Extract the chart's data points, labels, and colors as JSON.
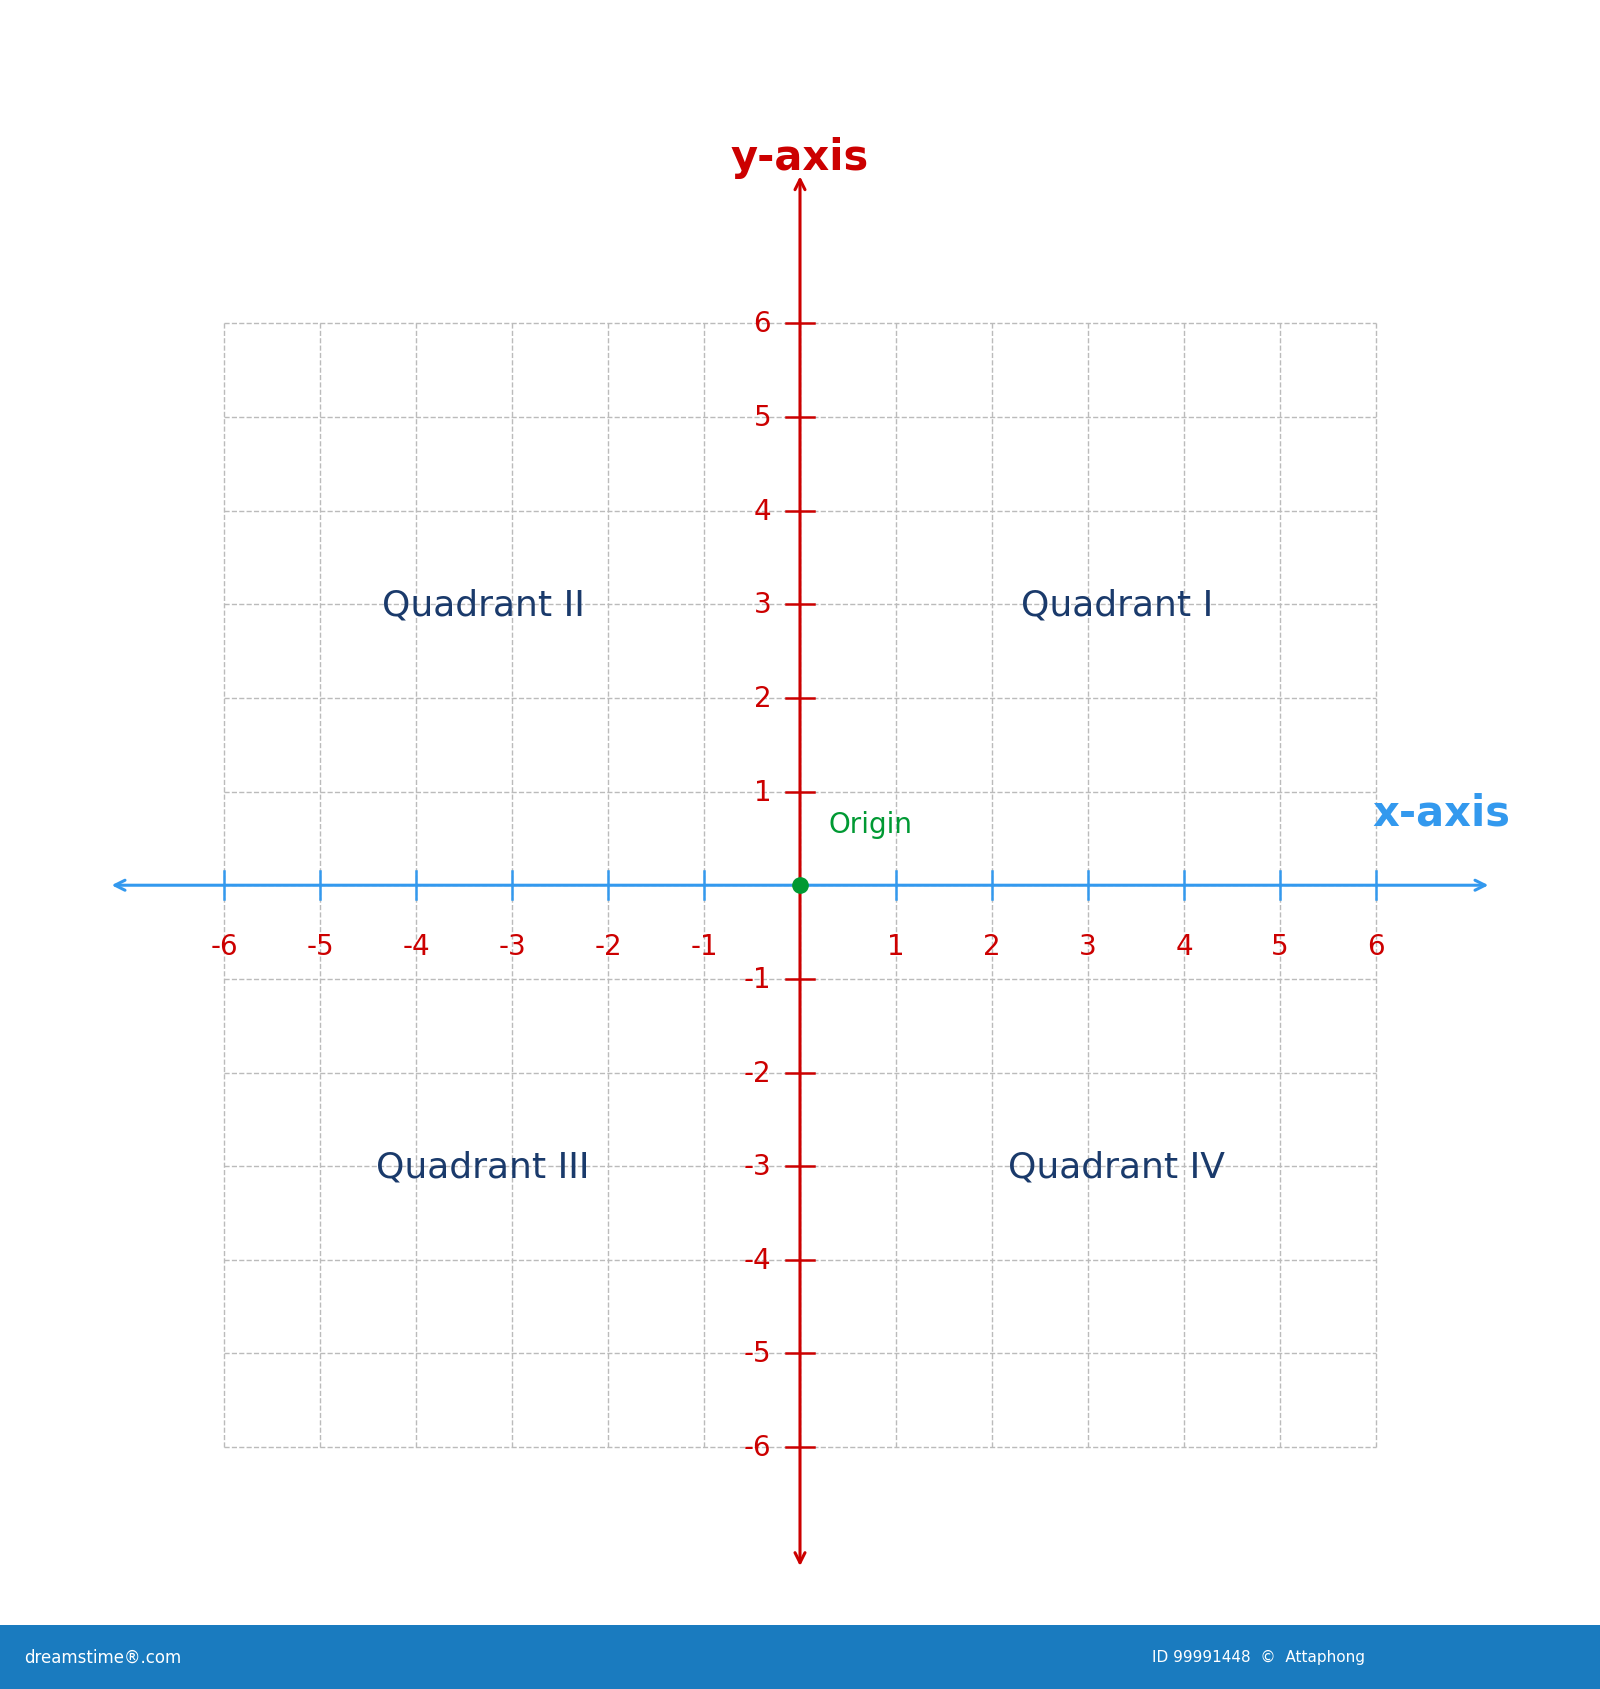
{
  "background_color": "#ffffff",
  "axis_color_x": "#3399ee",
  "axis_color_y": "#cc0000",
  "grid_color": "#bbbbbb",
  "tick_label_color": "#cc0000",
  "x_label": "x-axis",
  "y_label": "y-axis",
  "x_label_color": "#3399ee",
  "y_label_color": "#cc0000",
  "origin_label": "Origin",
  "origin_color": "#009933",
  "origin_dot_color": "#009933",
  "quadrant_labels": [
    "Quadrant I",
    "Quadrant II",
    "Quadrant III",
    "Quadrant IV"
  ],
  "quadrant_color": "#1a3a6b",
  "quadrant_positions": [
    [
      3.3,
      3.0
    ],
    [
      -3.3,
      3.0
    ],
    [
      -3.3,
      -3.0
    ],
    [
      3.3,
      -3.0
    ]
  ],
  "xlim": [
    -7.5,
    7.5
  ],
  "ylim": [
    -7.5,
    8.2
  ],
  "grid_range": 6,
  "axis_lw": 2.2,
  "grid_lw": 1.0,
  "figsize": [
    16.0,
    16.9
  ],
  "dpi": 100,
  "bottom_bar_color": "#1a7bbf",
  "font_size_quadrant": 26,
  "font_size_axis_label": 30,
  "font_size_ticks": 20,
  "font_size_origin": 20,
  "arrow_mutation_scale": 18
}
